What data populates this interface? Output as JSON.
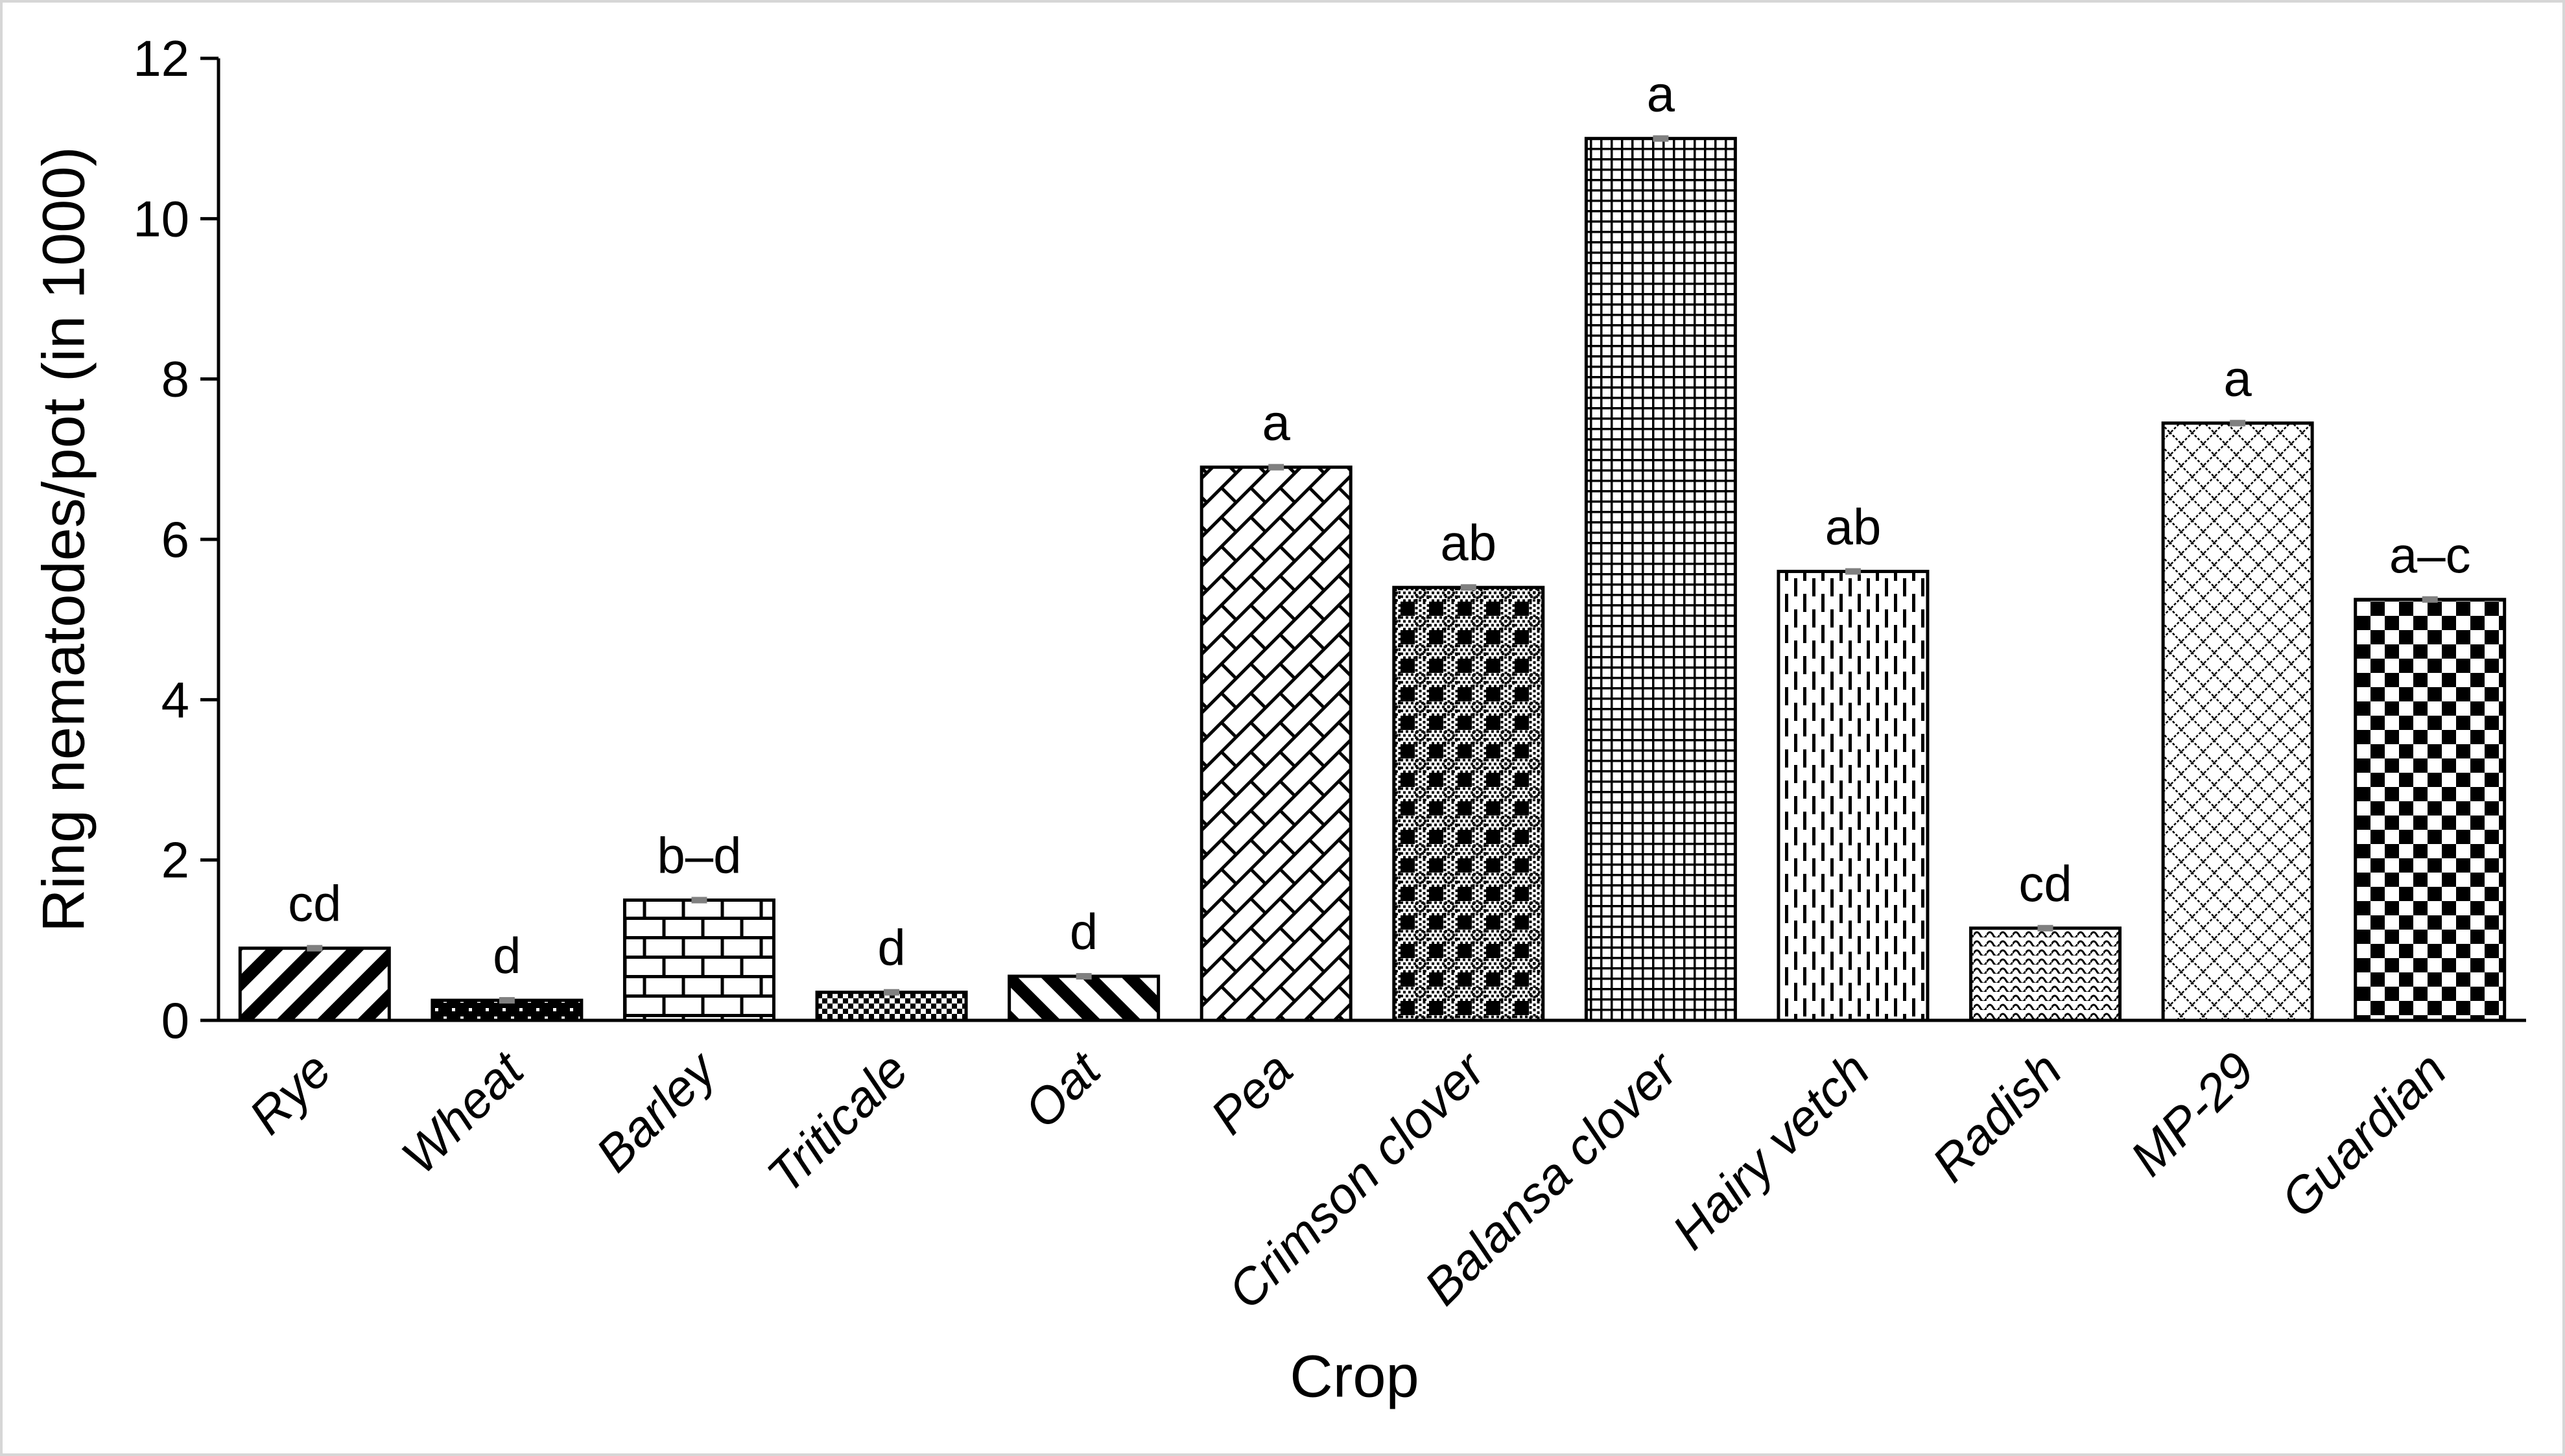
{
  "figure": {
    "background": "#ffffff",
    "frame_border_color": "#d6d6d6",
    "axis_color": "#000000",
    "text_color": "#000000"
  },
  "chart_data": {
    "type": "bar",
    "title": "",
    "xlabel": "Crop",
    "ylabel": "Ring nematodes/pot (in 1000)",
    "ylim": [
      0,
      12
    ],
    "yticks": [
      0,
      2,
      4,
      6,
      8,
      10,
      12
    ],
    "grid": false,
    "legend": null,
    "categories": [
      "Rye",
      "Wheat",
      "Barley",
      "Triticale",
      "Oat",
      "Pea",
      "Crimson clover",
      "Balansa clover",
      "Hairy vetch",
      "Radish",
      "MP-29",
      "Guardian"
    ],
    "values": [
      0.9,
      0.25,
      1.5,
      0.35,
      0.55,
      6.9,
      5.4,
      11.0,
      5.6,
      1.15,
      7.45,
      5.25
    ],
    "significance_letters": [
      "cd",
      "d",
      "b–d",
      "d",
      "d",
      "a",
      "ab",
      "a",
      "ab",
      "cd",
      "a",
      "a–c"
    ],
    "bar_patterns": [
      "wide-upward-diagonal",
      "dark-with-white-dots",
      "horizontal-brick",
      "small-checkerboard",
      "wide-downward-diagonal",
      "diagonal-brick",
      "plaid",
      "small-grid",
      "dashed-vertical",
      "wave",
      "diamond-lattice",
      "checkerboard"
    ],
    "bar_outline_color": "#000000",
    "pattern_color": "#000000",
    "error_cap_color": "#808080"
  }
}
